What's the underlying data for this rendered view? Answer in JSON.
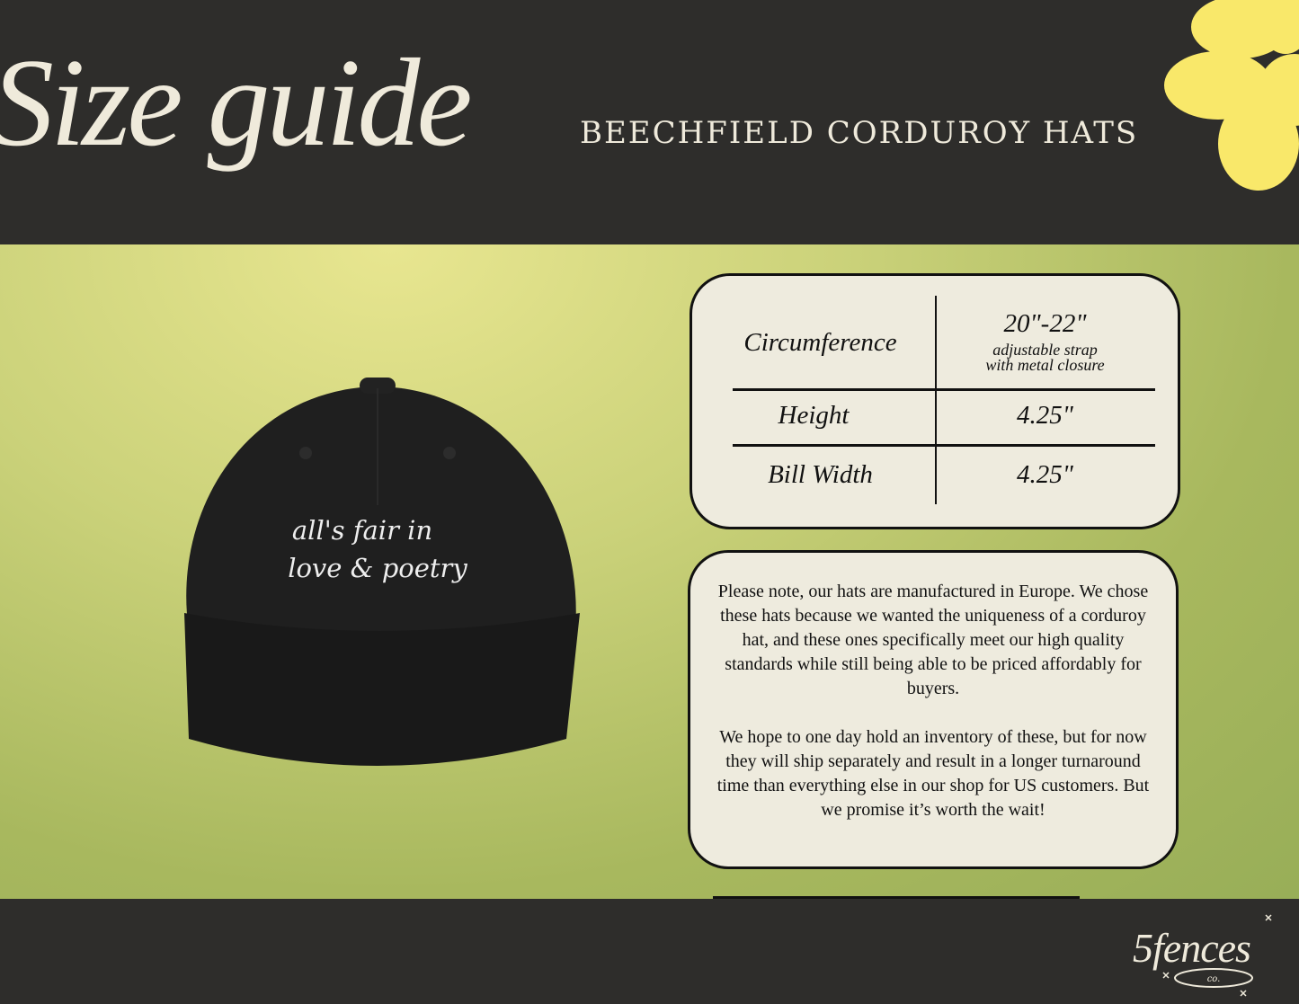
{
  "header": {
    "title": "Size guide",
    "subtitle": "BEECHFIELD CORDUROY HATS"
  },
  "hat": {
    "embroidery_line1": "all's fair in",
    "embroidery_line2": "love & poetry",
    "color": "#1c1c1c"
  },
  "size_table": {
    "rows": [
      {
        "label": "Circumference",
        "value": "20\"-22\"",
        "note_line1": "adjustable strap",
        "note_line2": "with metal closure"
      },
      {
        "label": "Height",
        "value": "4.25\""
      },
      {
        "label": "Bill Width",
        "value": "4.25\""
      }
    ]
  },
  "note": {
    "paragraph1": "Please note, our hats are manufactured in Europe. We chose these hats because we wanted the uniqueness of a corduroy hat, and these ones specifically meet our high quality standards while still being able to be priced affordably for buyers.",
    "paragraph2": "We hope to one day hold an inventory of these, but for now they will ship separately and result in a longer turnaround time than everything else in our shop for US customers. But we promise it’s worth the wait!"
  },
  "logo": {
    "name": "5fences",
    "suffix": "co."
  },
  "colors": {
    "dark": "#2e2d2b",
    "cream": "#eeebde",
    "flower": "#f9e86a"
  }
}
